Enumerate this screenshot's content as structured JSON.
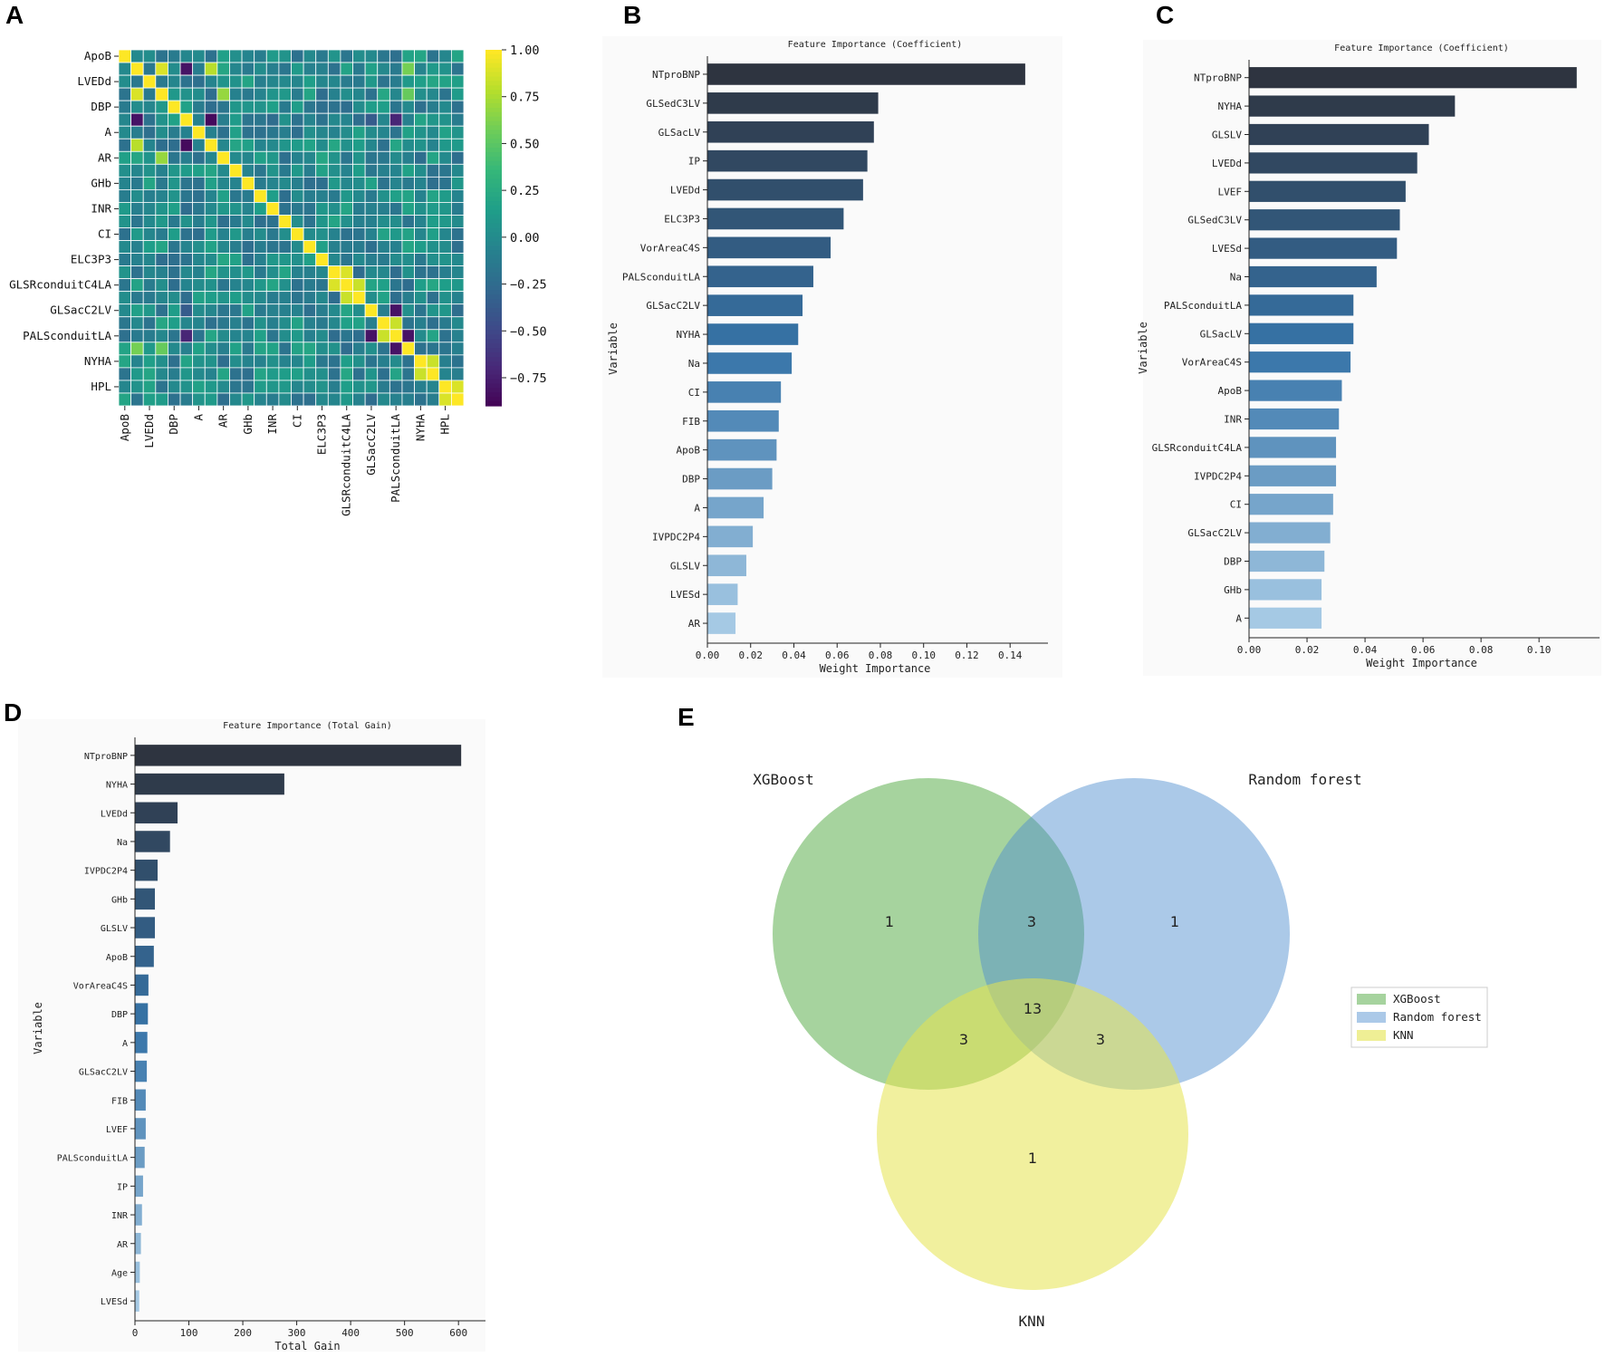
{
  "panel_labels": [
    "A",
    "B",
    "C",
    "D",
    "E"
  ],
  "chart_data": [
    {
      "id": "A",
      "type": "heatmap",
      "title": "",
      "row_labels": [
        "ApoB",
        "LVEDd",
        "DBP",
        "A",
        "AR",
        "GHb",
        "INR",
        "CI",
        "ELC3P3",
        "GLSRconduitC4LA",
        "GLSacC2LV",
        "PALSconduitLA",
        "NYHA",
        "HPL"
      ],
      "col_labels": [
        "ApoB",
        "LVEDd",
        "DBP",
        "A",
        "AR",
        "GHb",
        "INR",
        "CI",
        "ELC3P3",
        "GLSRconduitC4LA",
        "GLSacC2LV",
        "PALSconduitLA",
        "NYHA",
        "HPL"
      ],
      "grid_size": 28,
      "colorbar": {
        "ticks": [
          1.0,
          0.75,
          0.5,
          0.25,
          0.0,
          -0.25,
          -0.5,
          -0.75
        ],
        "tick_labels": [
          "1.00",
          "0.75",
          "0.50",
          "0.25",
          "0.00",
          "−0.25",
          "−0.50",
          "−0.75"
        ],
        "range": [
          -0.9,
          1.0
        ],
        "colormap": "viridis"
      },
      "notable_cells": [
        {
          "row": 3,
          "col": 1,
          "value": 0.9
        },
        {
          "row": 5,
          "col": 1,
          "value": -0.8
        },
        {
          "row": 5,
          "col": 7,
          "value": -0.85
        },
        {
          "row": 7,
          "col": 1,
          "value": 0.8
        },
        {
          "row": 7,
          "col": 5,
          "value": -0.85
        },
        {
          "row": 18,
          "col": 17,
          "value": 0.9
        },
        {
          "row": 19,
          "col": 18,
          "value": 0.85
        },
        {
          "row": 20,
          "col": 22,
          "value": -0.8
        },
        {
          "row": 21,
          "col": 22,
          "value": 0.85
        },
        {
          "row": 23,
          "col": 1,
          "value": 0.6
        },
        {
          "row": 23,
          "col": 22,
          "value": -0.8
        },
        {
          "row": 25,
          "col": 24,
          "value": 0.85
        },
        {
          "row": 27,
          "col": 26,
          "value": 0.9
        },
        {
          "row": 5,
          "col": 22,
          "value": -0.7
        },
        {
          "row": 5,
          "col": 20,
          "value": -0.35
        },
        {
          "row": 3,
          "col": 8,
          "value": 0.7
        },
        {
          "row": 3,
          "col": 23,
          "value": 0.55
        }
      ]
    },
    {
      "id": "B",
      "type": "bar",
      "orientation": "horizontal",
      "title": "Feature Importance (Coefficient)",
      "xlabel": "Weight Importance",
      "ylabel": "Variable",
      "categories": [
        "NTproBNP",
        "GLSedC3LV",
        "GLSacLV",
        "IP",
        "LVEDd",
        "ELC3P3",
        "VorAreaC4S",
        "PALSconduitLA",
        "GLSacC2LV",
        "NYHA",
        "Na",
        "CI",
        "FIB",
        "ApoB",
        "DBP",
        "A",
        "IVPDC2P4",
        "GLSLV",
        "LVESd",
        "AR"
      ],
      "values": [
        0.147,
        0.079,
        0.077,
        0.074,
        0.072,
        0.063,
        0.057,
        0.049,
        0.044,
        0.042,
        0.039,
        0.034,
        0.033,
        0.032,
        0.03,
        0.026,
        0.021,
        0.018,
        0.014,
        0.013
      ],
      "xlim": [
        0,
        0.155
      ],
      "xticks": [
        0.0,
        0.02,
        0.04,
        0.06,
        0.08,
        0.1,
        0.12,
        0.14
      ],
      "xtick_labels": [
        "0.00",
        "0.02",
        "0.04",
        "0.06",
        "0.08",
        "0.10",
        "0.12",
        "0.14"
      ]
    },
    {
      "id": "C",
      "type": "bar",
      "orientation": "horizontal",
      "title": "Feature Importance (Coefficient)",
      "xlabel": "Weight Importance",
      "ylabel": "Variable",
      "categories": [
        "NTproBNP",
        "NYHA",
        "GLSLV",
        "LVEDd",
        "LVEF",
        "GLSedC3LV",
        "LVESd",
        "Na",
        "PALSconduitLA",
        "GLSacLV",
        "VorAreaC4S",
        "ApoB",
        "INR",
        "GLSRconduitC4LA",
        "IVPDC2P4",
        "CI",
        "GLSacC2LV",
        "DBP",
        "GHb",
        "A"
      ],
      "values": [
        0.113,
        0.071,
        0.062,
        0.058,
        0.054,
        0.052,
        0.051,
        0.044,
        0.036,
        0.036,
        0.035,
        0.032,
        0.031,
        0.03,
        0.03,
        0.029,
        0.028,
        0.026,
        0.025,
        0.025
      ],
      "xlim": [
        0,
        0.119
      ],
      "xticks": [
        0.0,
        0.02,
        0.04,
        0.06,
        0.08,
        0.1
      ],
      "xtick_labels": [
        "0.00",
        "0.02",
        "0.04",
        "0.06",
        "0.08",
        "0.10"
      ]
    },
    {
      "id": "D",
      "type": "bar",
      "orientation": "horizontal",
      "title": "Feature Importance (Total Gain)",
      "xlabel": "Total Gain",
      "ylabel": "Variable",
      "categories": [
        "NTproBNP",
        "NYHA",
        "LVEDd",
        "Na",
        "IVPDC2P4",
        "GHb",
        "GLSLV",
        "ApoB",
        "VorAreaC4S",
        "DBP",
        "A",
        "GLSacC2LV",
        "FIB",
        "LVEF",
        "PALSconduitLA",
        "IP",
        "INR",
        "AR",
        "Age",
        "LVESd"
      ],
      "values": [
        605,
        277,
        79,
        65,
        42,
        37,
        37,
        35,
        25,
        24,
        23,
        22,
        20,
        20,
        18,
        15,
        13,
        11,
        9,
        8
      ],
      "xlim": [
        0,
        640
      ],
      "xticks": [
        0,
        100,
        200,
        300,
        400,
        500,
        600
      ],
      "xtick_labels": [
        "0",
        "100",
        "200",
        "300",
        "400",
        "500",
        "600"
      ]
    },
    {
      "id": "E",
      "type": "venn",
      "sets": [
        {
          "name": "XGBoost",
          "color": "#5cae4f"
        },
        {
          "name": "Random forest",
          "color": "#4f8fcf"
        },
        {
          "name": "KNN",
          "color": "#e5e44e"
        }
      ],
      "regions": {
        "XGBoost_only": "1",
        "RandomForest_only": "1",
        "KNN_only": "1",
        "XGBoost_RandomForest": "3",
        "XGBoost_KNN": "3",
        "RandomForest_KNN": "3",
        "all_three": "13"
      },
      "legend": [
        "XGBoost",
        "Random forest",
        "KNN"
      ]
    }
  ]
}
